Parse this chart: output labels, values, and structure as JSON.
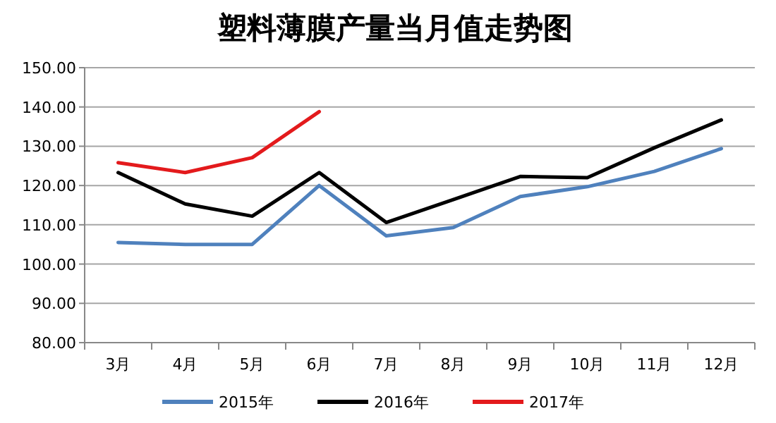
{
  "chart_data": {
    "type": "line",
    "title": "塑料薄膜产量当月值走势图",
    "categories": [
      "3月",
      "4月",
      "5月",
      "6月",
      "7月",
      "8月",
      "9月",
      "10月",
      "11月",
      "12月"
    ],
    "series": [
      {
        "name": "2015年",
        "color": "#4f81bd",
        "values": [
          105.5,
          105,
          105,
          120,
          107.2,
          109.3,
          117.2,
          119.7,
          123.6,
          129.4
        ]
      },
      {
        "name": "2016年",
        "color": "#000000",
        "values": [
          123.3,
          115.3,
          112.2,
          123.3,
          110.6,
          116.4,
          122.3,
          122,
          129.6,
          136.7
        ]
      },
      {
        "name": "2017年",
        "color": "#e31a1c",
        "values": [
          125.8,
          123.3,
          127.1,
          138.8,
          null,
          null,
          null,
          null,
          null,
          null
        ]
      }
    ],
    "ylim": [
      80,
      150
    ],
    "yticks": [
      {
        "value": 80,
        "label": "80.00"
      },
      {
        "value": 90,
        "label": "90.00"
      },
      {
        "value": 100,
        "label": "100.00"
      },
      {
        "value": 110,
        "label": "110.00"
      },
      {
        "value": 120,
        "label": "120.00"
      },
      {
        "value": 130,
        "label": "130.00"
      },
      {
        "value": 140,
        "label": "140.00"
      },
      {
        "value": 150,
        "label": "150.00"
      }
    ],
    "grid": "y",
    "legend": "bottom",
    "marker": "none",
    "line_style": "solid"
  }
}
